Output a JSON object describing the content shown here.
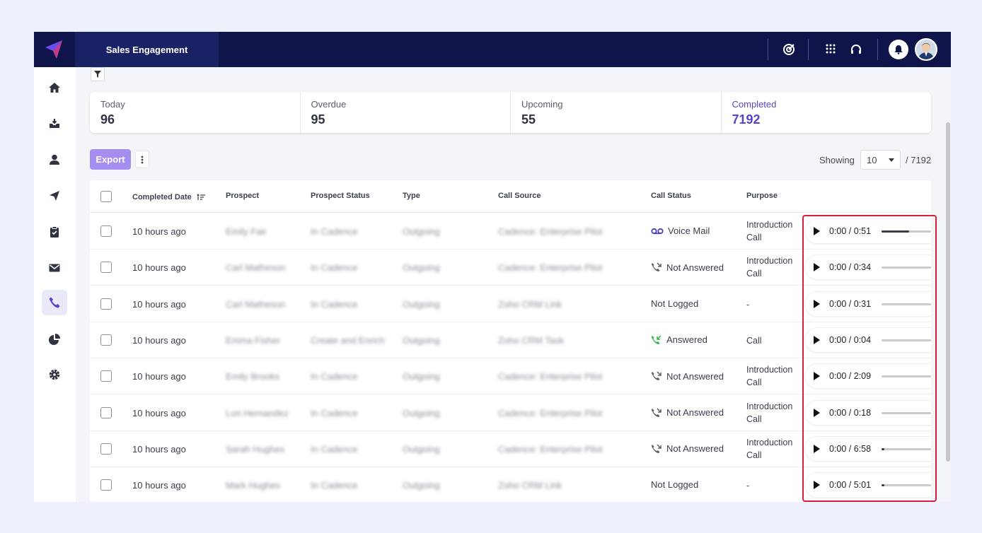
{
  "header": {
    "app_tab": "Sales Engagement"
  },
  "stats": [
    {
      "label": "Today",
      "value": "96"
    },
    {
      "label": "Overdue",
      "value": "95"
    },
    {
      "label": "Upcoming",
      "value": "55"
    },
    {
      "label": "Completed",
      "value": "7192"
    }
  ],
  "toolbar": {
    "export_label": "Export",
    "showing_label": "Showing",
    "page_size": "10",
    "total": "/ 7192"
  },
  "columns": [
    "Completed Date",
    "Prospect",
    "Prospect Status",
    "Type",
    "Call Source",
    "Call Status",
    "Purpose"
  ],
  "rows": [
    {
      "date": "10 hours ago",
      "prospect": "Emily Fair",
      "prospect_status": "In Cadence",
      "type": "Outgoing",
      "call_source": "Cadence: Enterprise Pilot",
      "call_status": "Voice Mail",
      "status_icon": "voicemail-icon",
      "purpose": [
        "Introduction",
        "Call"
      ],
      "time": "0:00 / 0:51",
      "progress": 0.55
    },
    {
      "date": "10 hours ago",
      "prospect": "Carl Matheson",
      "prospect_status": "In Cadence",
      "type": "Outgoing",
      "call_source": "Cadence: Enterprise Pilot",
      "call_status": "Not Answered",
      "status_icon": "call-missed-icon",
      "purpose": [
        "Introduction",
        "Call"
      ],
      "time": "0:00 / 0:34",
      "progress": 0
    },
    {
      "date": "10 hours ago",
      "prospect": "Carl Matheson",
      "prospect_status": "In Cadence",
      "type": "Outgoing",
      "call_source": "Zoho CRM Link",
      "call_status": "Not Logged",
      "status_icon": "",
      "purpose": [
        "-"
      ],
      "time": "0:00 / 0:31",
      "progress": 0
    },
    {
      "date": "10 hours ago",
      "prospect": "Emma Fisher",
      "prospect_status": "Create and Enrich",
      "type": "Outgoing",
      "call_source": "Zoho CRM Task",
      "call_status": "Answered",
      "status_icon": "call-answered-icon",
      "purpose": [
        "Call"
      ],
      "time": "0:00 / 0:04",
      "progress": 0
    },
    {
      "date": "10 hours ago",
      "prospect": "Emily Brooks",
      "prospect_status": "In Cadence",
      "type": "Outgoing",
      "call_source": "Cadence: Enterprise Pilot",
      "call_status": "Not Answered",
      "status_icon": "call-missed-icon",
      "purpose": [
        "Introduction",
        "Call"
      ],
      "time": "0:00 / 2:09",
      "progress": 0
    },
    {
      "date": "10 hours ago",
      "prospect": "Lori Hernandez",
      "prospect_status": "In Cadence",
      "type": "Outgoing",
      "call_source": "Cadence: Enterprise Pilot",
      "call_status": "Not Answered",
      "status_icon": "call-missed-icon",
      "purpose": [
        "Introduction",
        "Call"
      ],
      "time": "0:00 / 0:18",
      "progress": 0
    },
    {
      "date": "10 hours ago",
      "prospect": "Sarah Hughes",
      "prospect_status": "In Cadence",
      "type": "Outgoing",
      "call_source": "Cadence: Enterprise Pilot",
      "call_status": "Not Answered",
      "status_icon": "call-missed-icon",
      "purpose": [
        "Introduction",
        "Call"
      ],
      "time": "0:00 / 6:58",
      "progress": 0.05
    },
    {
      "date": "10 hours ago",
      "prospect": "Mark Hughes",
      "prospect_status": "In Cadence",
      "type": "Outgoing",
      "call_source": "Zoho CRM Link",
      "call_status": "Not Logged",
      "status_icon": "",
      "purpose": [
        "-"
      ],
      "time": "0:00 / 5:01",
      "progress": 0.05
    }
  ],
  "colors": {
    "nav": "#0f154a",
    "accent": "#5a44c6",
    "export": "#a48ff0",
    "answered": "#2fb344",
    "highlight": "#d61f3c"
  }
}
